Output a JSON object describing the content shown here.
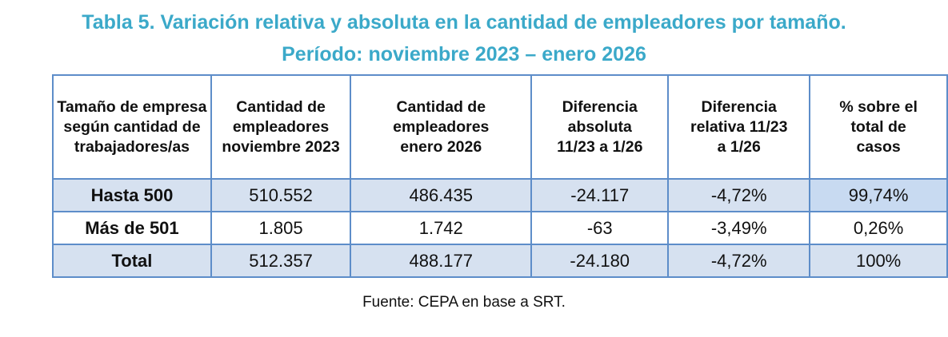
{
  "title": {
    "line1": "Tabla 5. Variación relativa y absoluta en la cantidad de empleadores por tamaño.",
    "line2": "Período: noviembre 2023 – enero 2026"
  },
  "table": {
    "headers": [
      "Tamaño de empresa según cantidad de trabajadores/as",
      "Cantidad de empleadores noviembre 2023",
      "Cantidad de empleadores enero 2026",
      "Diferencia absoluta 11/23 a 1/26",
      "Diferencia relativa 11/23 a 1/26",
      "% sobre el total de casos"
    ],
    "rows": [
      [
        "Hasta 500",
        "510.552",
        "486.435",
        "-24.117",
        "-4,72%",
        "99,74%"
      ],
      [
        "Más de 501",
        "1.805",
        "1.742",
        "-63",
        "-3,49%",
        "0,26%"
      ],
      [
        "Total",
        "512.357",
        "488.177",
        "-24.180",
        "-4,72%",
        "100%"
      ]
    ]
  },
  "source": "Fuente: CEPA en base a SRT.",
  "colors": {
    "title": "#3BA9C9",
    "border": "#5D8DC9",
    "row_shade": "#D6E1F0",
    "highlight": "#C8DAF1"
  }
}
